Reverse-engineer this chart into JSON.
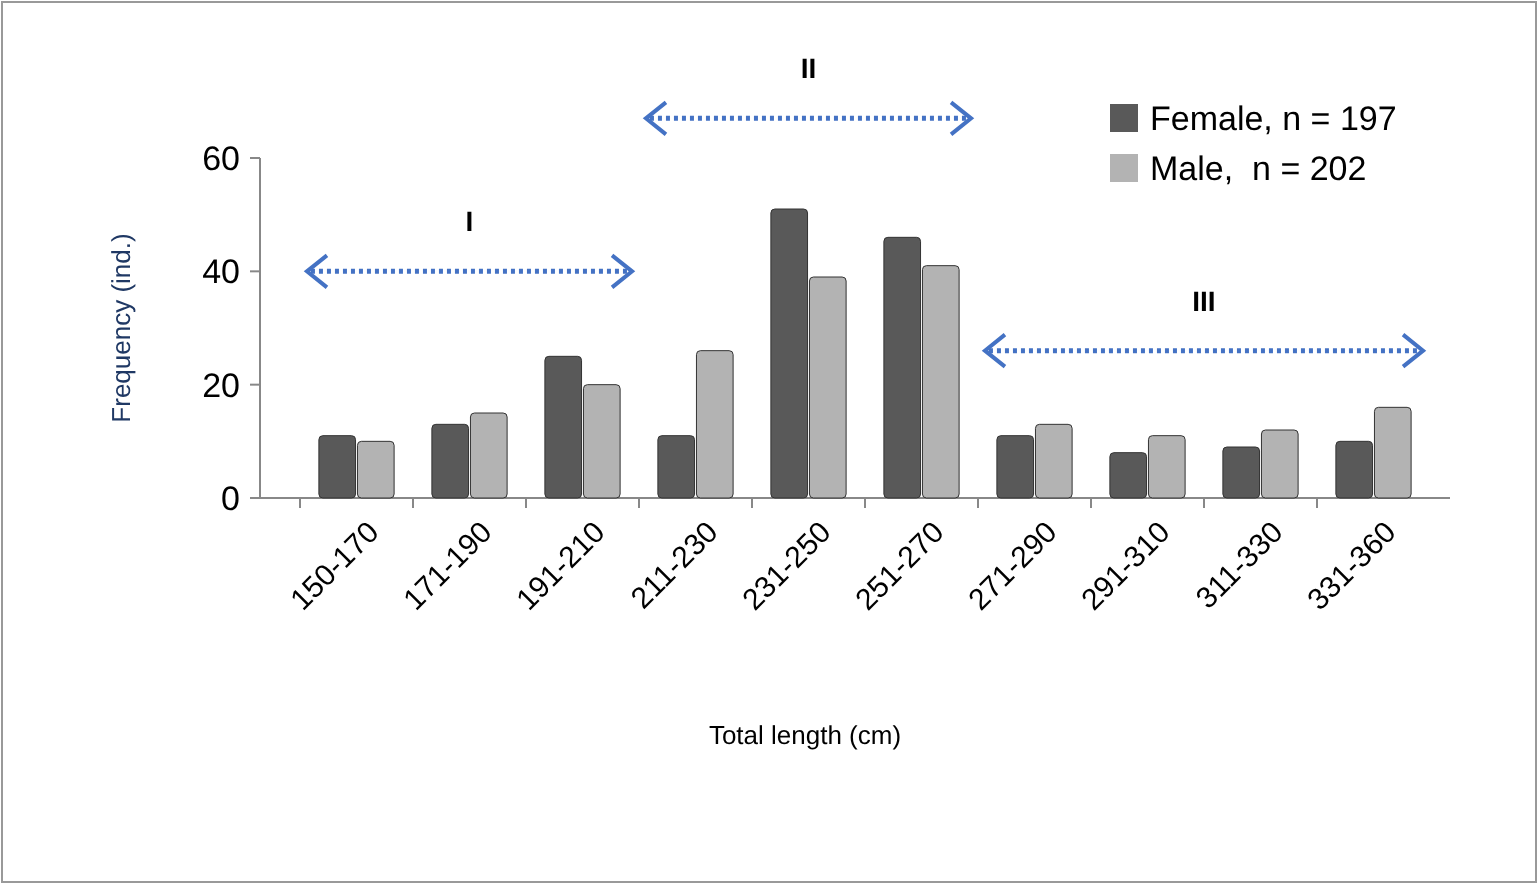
{
  "chart_data": {
    "type": "bar",
    "xlabel": "Total length (cm)",
    "ylabel": "Frequency (ind.)",
    "categories": [
      "150-170",
      "171-190",
      "191-210",
      "211-230",
      "231-250",
      "251-270",
      "271-290",
      "291-310",
      "311-330",
      "331-360"
    ],
    "series": [
      {
        "name": "Female, n = 197",
        "color": "#595959",
        "values": [
          11,
          13,
          25,
          11,
          51,
          46,
          11,
          8,
          9,
          10
        ]
      },
      {
        "name": "Male,  n = 202",
        "color": "#b3b3b3",
        "values": [
          10,
          15,
          20,
          26,
          39,
          41,
          13,
          11,
          12,
          16
        ]
      }
    ],
    "ylim": [
      0,
      60
    ],
    "yticks": [
      0,
      20,
      40,
      60
    ],
    "grid": false,
    "legend": "top right",
    "annotations": [
      "I",
      "II",
      "III"
    ]
  }
}
